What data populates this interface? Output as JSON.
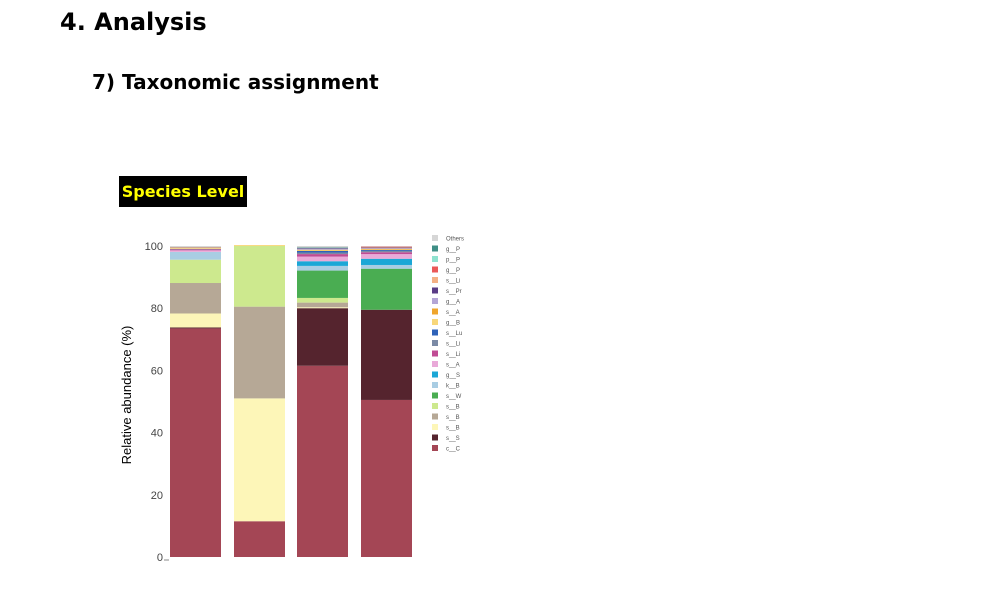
{
  "page": {
    "heading": "4. Analysis",
    "subheading": "7) Taxonomic assignment",
    "badge": "Species Level"
  },
  "chart_data": {
    "type": "bar",
    "stacked": true,
    "ylabel": "Relative abundance (%)",
    "ylim": [
      0,
      100
    ],
    "yticks": [
      0,
      20,
      40,
      60,
      80,
      100
    ],
    "categories": [
      "",
      "",
      "",
      ""
    ],
    "legend_position": "right",
    "series": [
      {
        "name": "c__C",
        "color": "#a44655",
        "values": [
          73.5,
          11.5,
          61.5,
          50.5
        ]
      },
      {
        "name": "s__S",
        "color": "#55242e",
        "values": [
          0.3,
          0,
          18.5,
          29
        ]
      },
      {
        "name": "s__B",
        "color": "#fdf6b8",
        "values": [
          4.5,
          39.5,
          0.3,
          0
        ]
      },
      {
        "name": "s__B",
        "color": "#b6a896",
        "values": [
          9.8,
          29.5,
          1.5,
          0
        ]
      },
      {
        "name": "s__B",
        "color": "#cde98e",
        "values": [
          7.5,
          19.5,
          1.5,
          0
        ]
      },
      {
        "name": "s__W",
        "color": "#4aad52",
        "values": [
          0,
          0,
          8.8,
          13.2
        ]
      },
      {
        "name": "k__B",
        "color": "#a9cde3",
        "values": [
          2.5,
          0,
          1.5,
          1.2
        ]
      },
      {
        "name": "g__S",
        "color": "#1ba7d6",
        "values": [
          0,
          0,
          1.5,
          2
        ]
      },
      {
        "name": "s__A",
        "color": "#e9a9d8",
        "values": [
          0.5,
          0,
          1.5,
          1.5
        ]
      },
      {
        "name": "s__Li",
        "color": "#c04b94",
        "values": [
          0.3,
          0,
          0.8,
          0.6
        ]
      },
      {
        "name": "s__Li",
        "color": "#7b8aa5",
        "values": [
          0.2,
          0,
          0.5,
          0.4
        ]
      },
      {
        "name": "s__Lu",
        "color": "#2e62b8",
        "values": [
          0,
          0,
          0.5,
          0.3
        ]
      },
      {
        "name": "g__B",
        "color": "#f8d77a",
        "values": [
          0.2,
          0.3,
          0.2,
          0.2
        ]
      },
      {
        "name": "s__A",
        "color": "#efa52c",
        "values": [
          0.2,
          0,
          0.2,
          0.2
        ]
      },
      {
        "name": "g__A",
        "color": "#b4a6d6",
        "values": [
          0.2,
          0,
          0.3,
          0.2
        ]
      },
      {
        "name": "s__Pr",
        "color": "#5a3c86",
        "values": [
          0,
          0,
          0.2,
          0.2
        ]
      },
      {
        "name": "s__Li",
        "color": "#f4b185",
        "values": [
          0,
          0,
          0,
          0.2
        ]
      },
      {
        "name": "g__P",
        "color": "#ea5858",
        "values": [
          0,
          0,
          0,
          0.1
        ]
      },
      {
        "name": "p__P",
        "color": "#8fe2cf",
        "values": [
          0,
          0,
          0,
          0
        ]
      },
      {
        "name": "g__P",
        "color": "#3f8f86",
        "values": [
          0,
          0,
          0.2,
          0
        ]
      },
      {
        "name": "Others",
        "color": "#d6d6d6",
        "values": [
          0.3,
          0,
          0.5,
          0.2
        ]
      }
    ]
  }
}
